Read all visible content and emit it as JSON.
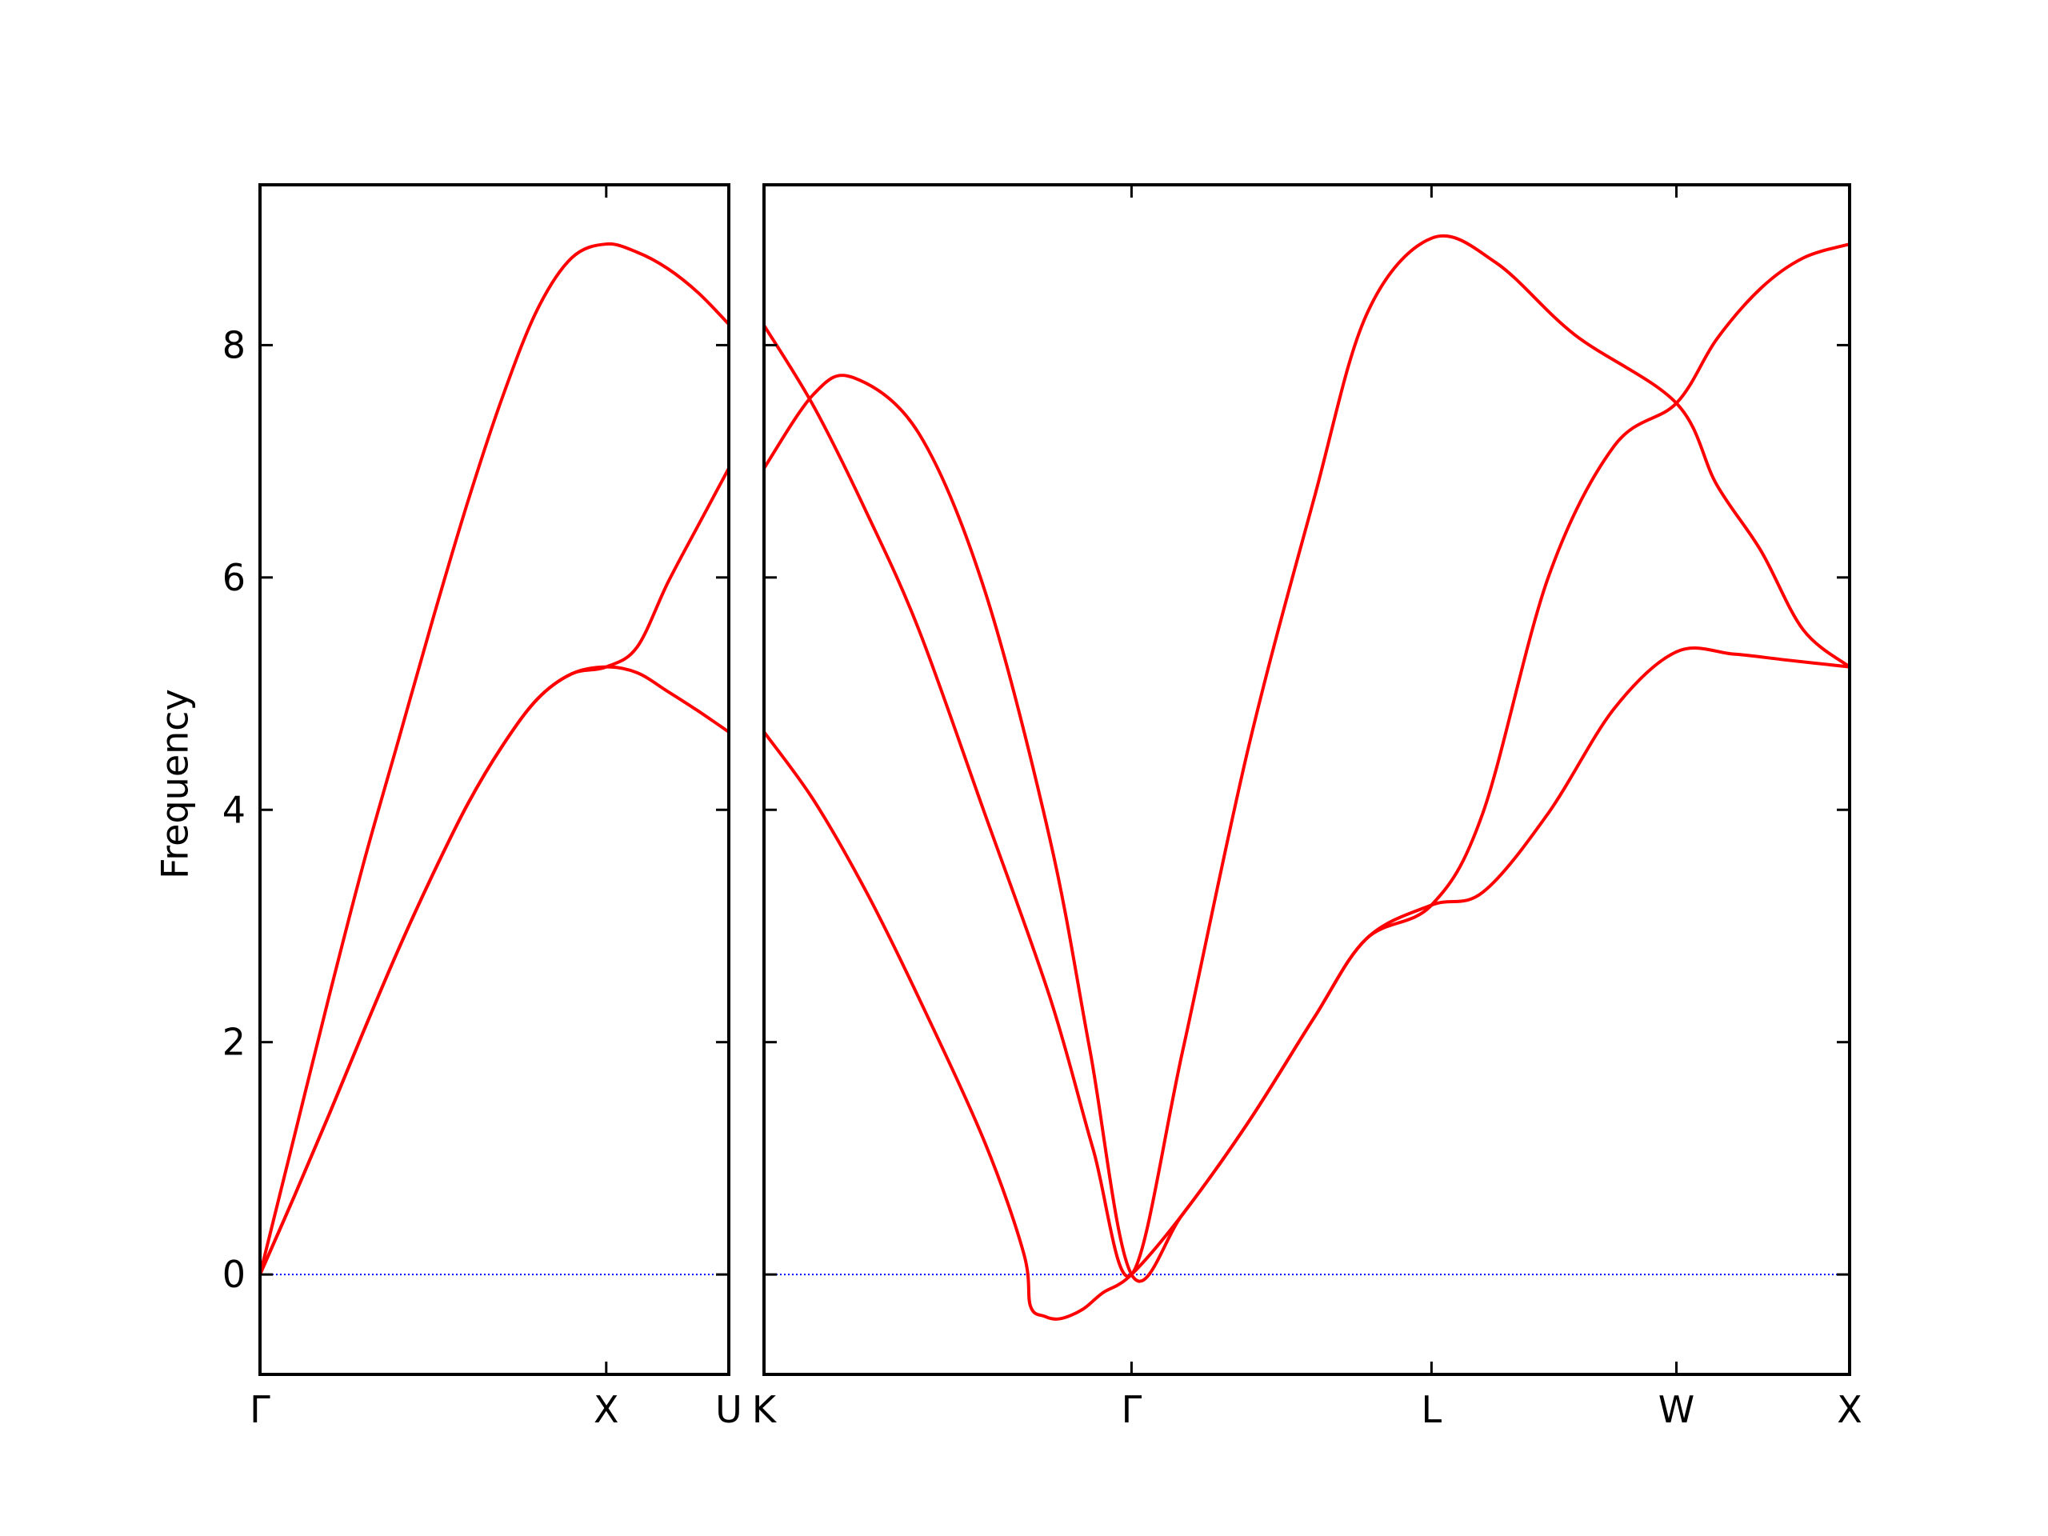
{
  "chart_data": [
    {
      "type": "line",
      "ylabel": "Frequency",
      "xlim": [
        0,
        1.354
      ],
      "xticks": [
        {
          "value": 0,
          "label": "Γ"
        },
        {
          "value": 1,
          "label": "X"
        },
        {
          "value": 1.354,
          "label": "U"
        }
      ],
      "ylim": [
        -0.86,
        9.38
      ],
      "yticks": [
        0,
        2,
        4,
        6,
        8
      ],
      "zero_line": {
        "y": 0,
        "color": "#0000ff"
      },
      "series": [
        {
          "color": "#ff0000",
          "x": [
            0,
            0.1,
            0.2,
            0.3,
            0.4,
            0.5,
            0.6,
            0.7,
            0.8,
            0.9,
            1.0,
            1.089,
            1.177,
            1.266,
            1.354
          ],
          "values": [
            0,
            0.68,
            1.38,
            2.1,
            2.8,
            3.45,
            4.05,
            4.55,
            4.95,
            5.17,
            5.23,
            5.18,
            5.02,
            4.85,
            4.67
          ]
        },
        {
          "color": "#ff0000",
          "x": [
            0,
            0.1,
            0.2,
            0.3,
            0.4,
            0.5,
            0.6,
            0.7,
            0.8,
            0.9,
            1.0,
            1.089,
            1.177,
            1.266,
            1.354
          ],
          "values": [
            0,
            0.68,
            1.38,
            2.1,
            2.8,
            3.45,
            4.05,
            4.55,
            4.95,
            5.17,
            5.23,
            5.4,
            5.95,
            6.45,
            6.94
          ]
        },
        {
          "color": "#ff0000",
          "x": [
            0,
            0.1,
            0.2,
            0.3,
            0.4,
            0.5,
            0.6,
            0.7,
            0.8,
            0.9,
            1.0,
            1.089,
            1.177,
            1.266,
            1.354
          ],
          "values": [
            0,
            1.2,
            2.4,
            3.55,
            4.6,
            5.65,
            6.65,
            7.55,
            8.3,
            8.75,
            8.87,
            8.8,
            8.66,
            8.45,
            8.18
          ]
        }
      ]
    },
    {
      "type": "line",
      "xlim": [
        0,
        3.134
      ],
      "xticks": [
        {
          "value": 0,
          "label": "K"
        },
        {
          "value": 1.061,
          "label": "Γ"
        },
        {
          "value": 1.927,
          "label": "L"
        },
        {
          "value": 2.634,
          "label": "W"
        },
        {
          "value": 3.134,
          "label": "X"
        }
      ],
      "ylim": [
        -0.86,
        9.38
      ],
      "zero_line": {
        "y": 0,
        "color": "#0000ff"
      },
      "series": [
        {
          "color": "#ff0000",
          "x": [
            0,
            0.144,
            0.296,
            0.447,
            0.637,
            0.75,
            0.769,
            0.81,
            0.856,
            0.92,
            0.977,
            1.061,
            1.209,
            1.398,
            1.588,
            1.739,
            1.927,
            2.075,
            2.264,
            2.454,
            2.634,
            2.8,
            2.95,
            3.134
          ],
          "values": [
            4.67,
            4.08,
            3.29,
            2.38,
            1.14,
            0.18,
            -0.27,
            -0.36,
            -0.38,
            -0.3,
            -0.16,
            0,
            0.52,
            1.31,
            2.21,
            2.89,
            3.18,
            3.29,
            3.97,
            4.87,
            5.36,
            5.34,
            5.29,
            5.23
          ]
        },
        {
          "color": "#ff0000",
          "x": [
            0,
            0.144,
            0.258,
            0.447,
            0.637,
            0.826,
            0.941,
            1.061,
            1.209,
            1.398,
            1.588,
            1.739,
            1.927,
            2.075,
            2.264,
            2.454,
            2.634,
            2.75,
            2.878,
            3.0,
            3.134
          ],
          "values": [
            6.94,
            7.58,
            7.72,
            7.24,
            5.89,
            3.74,
            1.93,
            0,
            0.52,
            1.31,
            2.21,
            2.89,
            3.18,
            3.97,
            6.0,
            7.13,
            7.5,
            8.05,
            8.49,
            8.75,
            8.87
          ]
        },
        {
          "color": "#ff0000",
          "x": [
            0,
            0.144,
            0.296,
            0.447,
            0.637,
            0.826,
            0.95,
            1.061,
            1.209,
            1.398,
            1.588,
            1.739,
            1.927,
            2.113,
            2.34,
            2.634,
            2.75,
            2.878,
            3.0,
            3.134
          ],
          "values": [
            8.17,
            7.47,
            6.56,
            5.55,
            3.97,
            2.38,
            1.08,
            0,
            1.93,
            4.53,
            6.68,
            8.26,
            8.92,
            8.71,
            8.09,
            7.5,
            6.8,
            6.23,
            5.55,
            5.23
          ]
        }
      ]
    }
  ]
}
